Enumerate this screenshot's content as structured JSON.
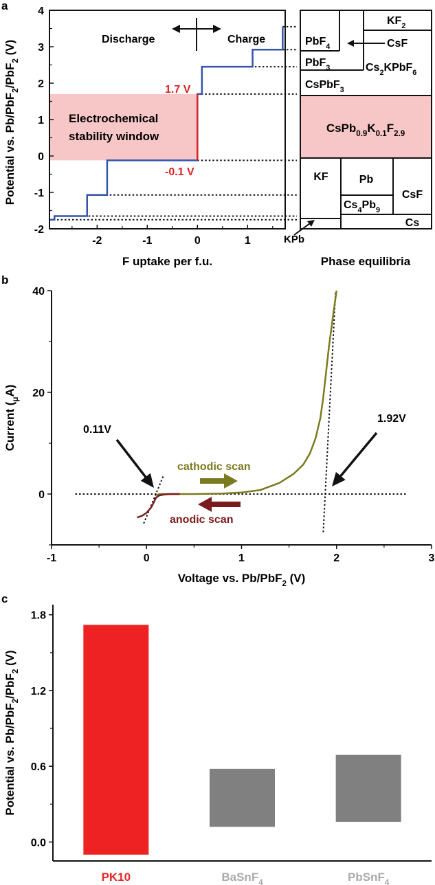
{
  "panels": {
    "a": "a",
    "b": "b",
    "c": "c"
  },
  "chart_data": [
    {
      "id": "a-left",
      "type": "line",
      "xlabel": "F uptake per f.u.",
      "ylabel_parts": [
        "Potential vs. Pb/PbF",
        "2",
        "/PbF",
        "2",
        " (V)"
      ],
      "xlim": [
        -2.95,
        1.75
      ],
      "ylim": [
        -2,
        4
      ],
      "xticks": [
        -2,
        -1,
        0,
        1
      ],
      "xtick_labels": [
        "-2",
        "-1",
        "0",
        "1"
      ],
      "yticks": [
        -2,
        -1,
        0,
        1,
        2,
        3,
        4
      ],
      "ytick_labels": [
        "-2",
        "-1",
        "0",
        "1",
        "2",
        "3",
        "4"
      ],
      "series": [
        {
          "color": "#3355aa",
          "x": [
            -2.95,
            -2.85,
            -2.85,
            -2.2,
            -2.2,
            -1.8,
            -1.8,
            0,
            0,
            0.09,
            0.09,
            1.1,
            1.1,
            1.7,
            1.7
          ],
          "y": [
            -1.75,
            -1.75,
            -1.65,
            -1.65,
            -1.07,
            -1.07,
            -0.12,
            -0.12,
            1.7,
            1.7,
            2.45,
            2.45,
            2.92,
            2.92,
            3.55
          ]
        }
      ],
      "highlight": {
        "series_color": "#dd2222",
        "x": 0,
        "y": [
          -0.12,
          1.7
        ]
      },
      "stability_band": {
        "y": [
          -0.12,
          1.7
        ],
        "color": "#f7c6c6"
      },
      "annotations": {
        "discharge": "Discharge",
        "charge": "Charge",
        "upper_v": "1.7 V",
        "lower_v": "-0.1 V",
        "window_line1": "Electrochemical",
        "window_line2": "stability window"
      }
    },
    {
      "id": "a-right",
      "type": "table",
      "xlabel": "Phase equilibria",
      "cells": {
        "kf2": [
          "KF",
          "2"
        ],
        "pbf4": [
          "PbF",
          "4"
        ],
        "csf_top": "CsF",
        "cs2kpbf6": [
          "Cs",
          "2",
          "KPbF",
          "6"
        ],
        "pbf3": [
          "PbF",
          "3"
        ],
        "cspbf3": [
          "CsPbF",
          "3"
        ],
        "center": [
          "CsPb",
          "0.9",
          "K",
          "0.1",
          "F",
          "2.9"
        ],
        "kf": "KF",
        "pb": "Pb",
        "cs4pb9": [
          "Cs",
          "4",
          "Pb",
          "9"
        ],
        "csf_bottom": "CsF",
        "cs": "Cs",
        "kpb": "KPb"
      }
    },
    {
      "id": "b",
      "type": "line",
      "xlabel_parts": [
        "Voltage vs. Pb/PbF",
        "2",
        " (V)"
      ],
      "ylabel_parts": [
        "Current (",
        "μ",
        "A)"
      ],
      "xlim": [
        -1,
        3
      ],
      "ylim": [
        -10,
        40
      ],
      "xticks": [
        -1,
        0,
        1,
        2,
        3
      ],
      "xtick_labels": [
        "-1",
        "0",
        "1",
        "2",
        "3"
      ],
      "yticks": [
        0,
        20,
        40
      ],
      "ytick_labels": [
        "0",
        "20",
        "40"
      ],
      "series": [
        {
          "name": "cathodic scan",
          "color": "#7a7a1e",
          "x": [
            0.1,
            0.15,
            0.2,
            0.3,
            0.5,
            0.8,
            1.0,
            1.2,
            1.4,
            1.55,
            1.65,
            1.72,
            1.78,
            1.83,
            1.86,
            1.89,
            1.92,
            1.97,
            2.0
          ],
          "y": [
            -0.2,
            0,
            0,
            0,
            0,
            0.1,
            0.3,
            0.8,
            2.2,
            4.0,
            5.8,
            8.0,
            11,
            15,
            19,
            24,
            29,
            36,
            40
          ]
        },
        {
          "name": "anodic scan",
          "color": "#7a1c1c",
          "x": [
            -0.1,
            -0.05,
            0,
            0.05,
            0.08,
            0.1,
            0.13,
            0.18,
            0.25,
            0.35
          ],
          "y": [
            -4.6,
            -4.3,
            -3.7,
            -2.6,
            -1.5,
            -0.7,
            -0.3,
            -0.1,
            0,
            0
          ]
        }
      ],
      "zero_line": {
        "x": [
          -0.75,
          2.75
        ],
        "y": 0
      },
      "tangents": [
        {
          "x": [
            -0.03,
            0.18
          ],
          "y": [
            -5.8,
            3.7
          ]
        },
        {
          "x": [
            1.86,
            1.99
          ],
          "y": [
            -7.5,
            40
          ]
        }
      ],
      "annotations": {
        "left_v": "0.11V",
        "right_v": "1.92V"
      }
    },
    {
      "id": "c",
      "type": "bar",
      "ylabel_parts": [
        "Potential vs. Pb/PbF",
        "2",
        "/PbF",
        "2",
        " (V)"
      ],
      "ylim": [
        -0.15,
        1.88
      ],
      "yticks": [
        0.0,
        0.6,
        1.2,
        1.8
      ],
      "ytick_labels": [
        "0.0",
        "0.6",
        "1.2",
        "1.8"
      ],
      "categories": [
        "PK10",
        "BaSnF4",
        "PbSnF4"
      ],
      "category_labels": [
        [
          "PK10",
          ""
        ],
        [
          "BaSnF",
          "4"
        ],
        [
          "PbSnF",
          "4"
        ]
      ],
      "bottoms": [
        -0.1,
        0.12,
        0.16
      ],
      "tops": [
        1.72,
        0.58,
        0.69
      ],
      "colors": [
        "#ee2222",
        "#808080",
        "#808080"
      ],
      "label_colors": [
        "#ee2222",
        "#aaaaaa",
        "#aaaaaa"
      ]
    }
  ]
}
